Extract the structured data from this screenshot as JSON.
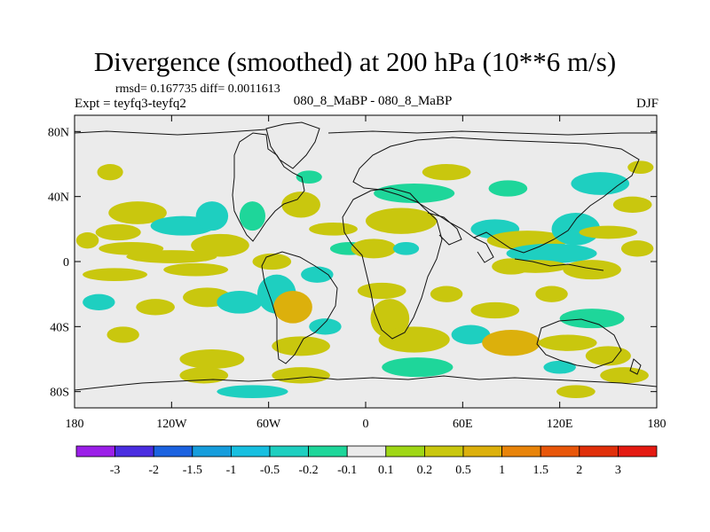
{
  "header": {
    "title": "Divergence (smoothed) at 200 hPa (10**6 m/s)",
    "stats": "rmsd= 0.167735 diff= 0.0011613",
    "experiment": "Expt = teyfq3-teyfq2",
    "center_label": "080_8_MaBP - 080_8_MaBP",
    "season": "DJF"
  },
  "chart_data": {
    "type": "heatmap",
    "title": "Divergence (smoothed) at 200 hPa (10**6 m/s)",
    "xlabel": "",
    "ylabel": "",
    "xlim": [
      -180,
      180
    ],
    "ylim": [
      -90,
      90
    ],
    "x_ticks": [
      {
        "value": -180,
        "label": "180"
      },
      {
        "value": -120,
        "label": "120W"
      },
      {
        "value": -60,
        "label": "60W"
      },
      {
        "value": 0,
        "label": "0"
      },
      {
        "value": 60,
        "label": "60E"
      },
      {
        "value": 120,
        "label": "120E"
      },
      {
        "value": 180,
        "label": "180"
      }
    ],
    "y_ticks": [
      {
        "value": 80,
        "label": "80N"
      },
      {
        "value": 40,
        "label": "40N"
      },
      {
        "value": 0,
        "label": "0"
      },
      {
        "value": -40,
        "label": "40S"
      },
      {
        "value": -80,
        "label": "80S"
      }
    ],
    "colorbar": {
      "levels": [
        "-3",
        "-2",
        "-1.5",
        "-1",
        "-0.5",
        "-0.2",
        "-0.1",
        "0.1",
        "0.2",
        "0.5",
        "1",
        "1.5",
        "2",
        "3"
      ],
      "colors": [
        "#9b1fe8",
        "#4a2de0",
        "#1b62e0",
        "#169ddc",
        "#17bfe0",
        "#1ecfc0",
        "#1ed69a",
        "#ebebeb",
        "#9fd716",
        "#c9c70e",
        "#dcb00c",
        "#e8840a",
        "#e8560a",
        "#e02f0a",
        "#e41a12"
      ]
    },
    "regions": [
      {
        "lon": -141,
        "lat": 30,
        "rx": 18,
        "ry": 7,
        "value": 0.3
      },
      {
        "lon": -153,
        "lat": 18,
        "rx": 14,
        "ry": 5,
        "value": 0.25
      },
      {
        "lon": -113,
        "lat": 22,
        "rx": 20,
        "ry": 6,
        "value": -0.25
      },
      {
        "lon": -145,
        "lat": 8,
        "rx": 20,
        "ry": 4,
        "value": 0.3
      },
      {
        "lon": -120,
        "lat": 3,
        "rx": 28,
        "ry": 4,
        "value": 0.4
      },
      {
        "lon": -90,
        "lat": 10,
        "rx": 18,
        "ry": 7,
        "value": 0.3
      },
      {
        "lon": -105,
        "lat": -5,
        "rx": 20,
        "ry": 4,
        "value": 0.25
      },
      {
        "lon": -155,
        "lat": -8,
        "rx": 20,
        "ry": 4,
        "value": 0.3
      },
      {
        "lon": -172,
        "lat": 13,
        "rx": 7,
        "ry": 5,
        "value": 0.3
      },
      {
        "lon": -95,
        "lat": 28,
        "rx": 10,
        "ry": 9,
        "value": -0.3
      },
      {
        "lon": -70,
        "lat": 28,
        "rx": 8,
        "ry": 9,
        "value": -0.2
      },
      {
        "lon": -165,
        "lat": -25,
        "rx": 10,
        "ry": 5,
        "value": -0.3
      },
      {
        "lon": -130,
        "lat": -28,
        "rx": 12,
        "ry": 5,
        "value": 0.25
      },
      {
        "lon": -98,
        "lat": -22,
        "rx": 15,
        "ry": 6,
        "value": 0.25
      },
      {
        "lon": -78,
        "lat": -25,
        "rx": 14,
        "ry": 7,
        "value": -0.3
      },
      {
        "lon": -55,
        "lat": -20,
        "rx": 12,
        "ry": 12,
        "value": -0.5
      },
      {
        "lon": -45,
        "lat": -28,
        "rx": 12,
        "ry": 10,
        "value": 0.6
      },
      {
        "lon": -58,
        "lat": 0,
        "rx": 12,
        "ry": 5,
        "value": 0.3
      },
      {
        "lon": -30,
        "lat": -8,
        "rx": 10,
        "ry": 5,
        "value": -0.3
      },
      {
        "lon": -150,
        "lat": -45,
        "rx": 10,
        "ry": 5,
        "value": 0.3
      },
      {
        "lon": -40,
        "lat": -52,
        "rx": 18,
        "ry": 6,
        "value": 0.3
      },
      {
        "lon": -95,
        "lat": -60,
        "rx": 20,
        "ry": 6,
        "value": 0.3
      },
      {
        "lon": -100,
        "lat": -70,
        "rx": 15,
        "ry": 5,
        "value": 0.2
      },
      {
        "lon": -40,
        "lat": -70,
        "rx": 18,
        "ry": 5,
        "value": 0.2
      },
      {
        "lon": -70,
        "lat": -80,
        "rx": 22,
        "ry": 4,
        "value": -0.25
      },
      {
        "lon": -158,
        "lat": 55,
        "rx": 8,
        "ry": 5,
        "value": 0.3
      },
      {
        "lon": -35,
        "lat": 52,
        "rx": 8,
        "ry": 4,
        "value": -0.2
      },
      {
        "lon": -40,
        "lat": 35,
        "rx": 12,
        "ry": 8,
        "value": 0.25
      },
      {
        "lon": -20,
        "lat": 20,
        "rx": 15,
        "ry": 4,
        "value": 0.25
      },
      {
        "lon": -10,
        "lat": 8,
        "rx": 12,
        "ry": 4,
        "value": -0.2
      },
      {
        "lon": 5,
        "lat": 8,
        "rx": 14,
        "ry": 6,
        "value": 0.3
      },
      {
        "lon": 25,
        "lat": 8,
        "rx": 8,
        "ry": 4,
        "value": -0.25
      },
      {
        "lon": 22,
        "lat": 25,
        "rx": 22,
        "ry": 8,
        "value": 0.25
      },
      {
        "lon": 30,
        "lat": 42,
        "rx": 25,
        "ry": 6,
        "value": -0.2
      },
      {
        "lon": 50,
        "lat": 55,
        "rx": 15,
        "ry": 5,
        "value": 0.3
      },
      {
        "lon": 88,
        "lat": 45,
        "rx": 12,
        "ry": 5,
        "value": -0.2
      },
      {
        "lon": 80,
        "lat": 20,
        "rx": 15,
        "ry": 6,
        "value": -0.25
      },
      {
        "lon": 100,
        "lat": 13,
        "rx": 25,
        "ry": 6,
        "value": 0.4
      },
      {
        "lon": 115,
        "lat": 5,
        "rx": 28,
        "ry": 6,
        "value": -0.3
      },
      {
        "lon": 130,
        "lat": 20,
        "rx": 15,
        "ry": 10,
        "value": -0.3
      },
      {
        "lon": 145,
        "lat": 48,
        "rx": 18,
        "ry": 7,
        "value": -0.25
      },
      {
        "lon": 150,
        "lat": 18,
        "rx": 18,
        "ry": 4,
        "value": 0.25
      },
      {
        "lon": 90,
        "lat": -3,
        "rx": 12,
        "ry": 5,
        "value": 0.3
      },
      {
        "lon": 105,
        "lat": -3,
        "rx": 20,
        "ry": 4,
        "value": 0.35
      },
      {
        "lon": 140,
        "lat": -5,
        "rx": 18,
        "ry": 6,
        "value": 0.3
      },
      {
        "lon": 168,
        "lat": 8,
        "rx": 10,
        "ry": 5,
        "value": 0.25
      },
      {
        "lon": 10,
        "lat": -18,
        "rx": 15,
        "ry": 5,
        "value": 0.3
      },
      {
        "lon": 15,
        "lat": -35,
        "rx": 12,
        "ry": 12,
        "value": 0.3
      },
      {
        "lon": 30,
        "lat": -48,
        "rx": 22,
        "ry": 8,
        "value": 0.3
      },
      {
        "lon": 32,
        "lat": -65,
        "rx": 22,
        "ry": 6,
        "value": -0.2
      },
      {
        "lon": 50,
        "lat": -20,
        "rx": 10,
        "ry": 5,
        "value": 0.3
      },
      {
        "lon": 80,
        "lat": -30,
        "rx": 15,
        "ry": 5,
        "value": 0.3
      },
      {
        "lon": 65,
        "lat": -45,
        "rx": 12,
        "ry": 6,
        "value": -0.25
      },
      {
        "lon": 90,
        "lat": -50,
        "rx": 18,
        "ry": 8,
        "value": 0.6
      },
      {
        "lon": 115,
        "lat": -20,
        "rx": 10,
        "ry": 5,
        "value": 0.3
      },
      {
        "lon": 140,
        "lat": -35,
        "rx": 20,
        "ry": 6,
        "value": -0.2
      },
      {
        "lon": 125,
        "lat": -50,
        "rx": 18,
        "ry": 5,
        "value": 0.3
      },
      {
        "lon": 150,
        "lat": -58,
        "rx": 14,
        "ry": 6,
        "value": 0.4
      },
      {
        "lon": 160,
        "lat": -70,
        "rx": 15,
        "ry": 5,
        "value": 0.3
      },
      {
        "lon": 120,
        "lat": -65,
        "rx": 10,
        "ry": 4,
        "value": -0.25
      },
      {
        "lon": 130,
        "lat": -80,
        "rx": 12,
        "ry": 4,
        "value": 0.3
      },
      {
        "lon": 165,
        "lat": 35,
        "rx": 12,
        "ry": 5,
        "value": 0.3
      },
      {
        "lon": 170,
        "lat": 58,
        "rx": 8,
        "ry": 4,
        "value": 0.3
      },
      {
        "lon": -25,
        "lat": -40,
        "rx": 10,
        "ry": 5,
        "value": -0.25
      }
    ]
  }
}
